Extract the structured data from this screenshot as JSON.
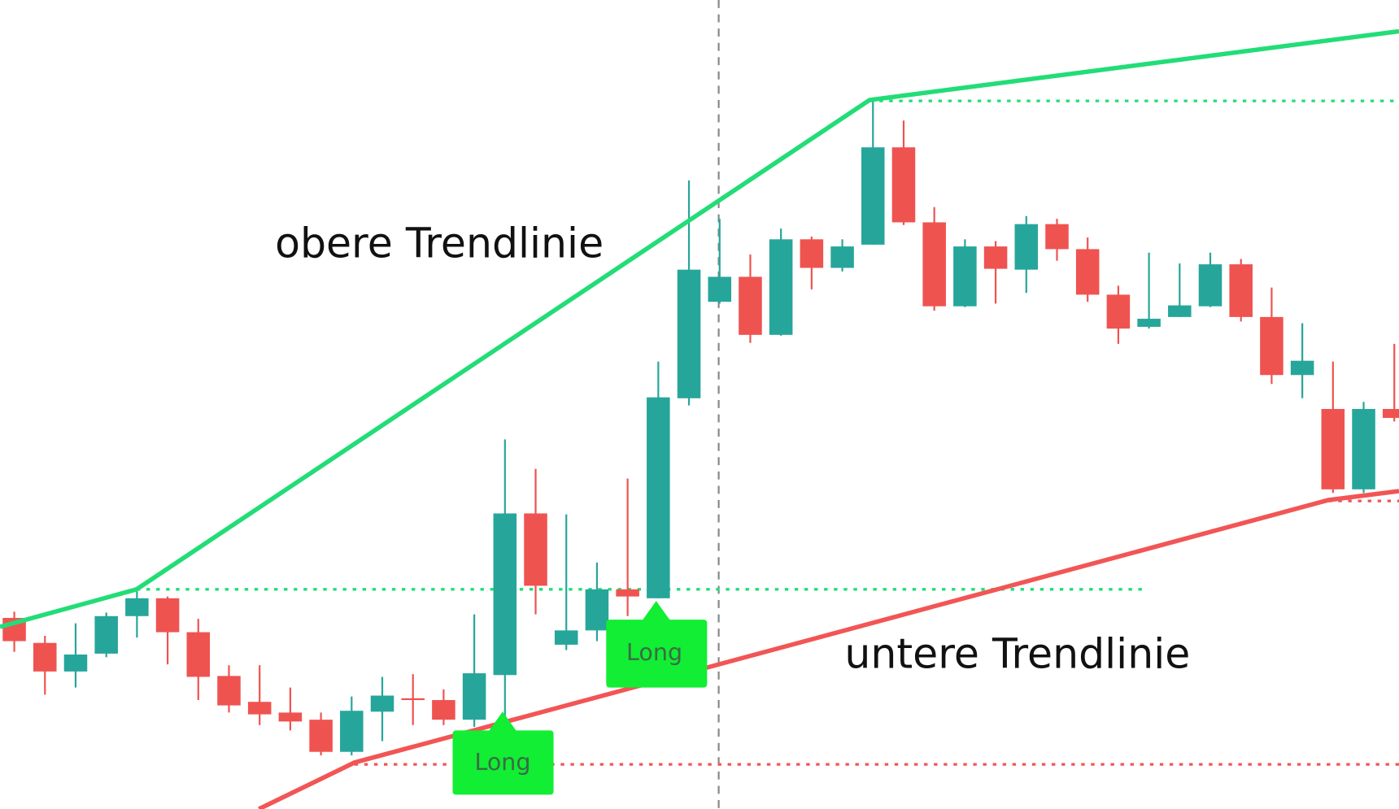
{
  "chart_data": {
    "type": "candlestick",
    "annotations": [
      "obere Trendlinie",
      "untere Trendlinie"
    ],
    "signals": [
      "Long",
      "Long"
    ],
    "up_color": "#26a69a",
    "down_color": "#ef5350",
    "ylim": [
      0,
      906
    ],
    "open": [
      214,
      186,
      154,
      174,
      216,
      236,
      198,
      149,
      120,
      108,
      100,
      64,
      109,
      124,
      122,
      100,
      150,
      331,
      184,
      200,
      246,
      236,
      460,
      568,
      596,
      531,
      638,
      606,
      632,
      741,
      657,
      563,
      630,
      604,
      655,
      627,
      576,
      540,
      551,
      563,
      610,
      551,
      486,
      448,
      358,
      448
    ],
    "high": [
      221,
      194,
      208,
      220,
      246,
      238,
      213,
      161,
      161,
      136,
      108,
      126,
      148,
      151,
      134,
      218,
      414,
      381,
      330,
      276,
      370,
      501,
      704,
      661,
      621,
      650,
      641,
      638,
      796,
      771,
      674,
      638,
      636,
      664,
      661,
      640,
      586,
      623,
      611,
      623,
      616,
      584,
      544,
      501,
      456,
      521
    ],
    "low": [
      176,
      128,
      136,
      170,
      192,
      162,
      122,
      108,
      94,
      88,
      60,
      60,
      76,
      94,
      94,
      92,
      100,
      218,
      178,
      188,
      216,
      236,
      452,
      566,
      522,
      530,
      582,
      602,
      632,
      654,
      558,
      562,
      566,
      578,
      614,
      568,
      521,
      538,
      551,
      562,
      546,
      476,
      460,
      354,
      354,
      434
    ],
    "close": [
      188,
      154,
      173,
      216,
      236,
      198,
      148,
      116,
      106,
      98,
      64,
      110,
      127,
      122,
      100,
      152,
      331,
      250,
      200,
      246,
      238,
      461,
      604,
      596,
      531,
      638,
      606,
      630,
      741,
      657,
      563,
      630,
      605,
      655,
      627,
      576,
      538,
      549,
      564,
      610,
      551,
      486,
      502,
      358,
      448,
      438
    ]
  }
}
